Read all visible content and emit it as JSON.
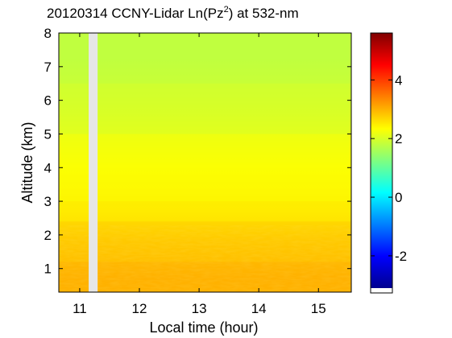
{
  "chart_data": {
    "type": "heatmap",
    "title_main": "20120314 CCNY-Lidar Ln(Pz",
    "title_sup": "2",
    "title_tail": ") at 532-nm",
    "xlabel": "Local time (hour)",
    "ylabel": "Altitude (km)",
    "xlim": [
      10.65,
      15.55
    ],
    "ylim": [
      0.3,
      8.0
    ],
    "xticks": [
      11,
      12,
      13,
      14,
      15
    ],
    "yticks": [
      1,
      2,
      3,
      4,
      5,
      6,
      7,
      8
    ],
    "data_gap": {
      "x_start": 11.15,
      "x_end": 11.3
    },
    "colorbar": {
      "colormap": "jet",
      "range": [
        -3.1,
        5.6
      ],
      "ticks": [
        -2,
        0,
        2,
        4
      ]
    },
    "regions": [
      {
        "altitude": [
          0.3,
          1.2
        ],
        "value": 3.0
      },
      {
        "altitude": [
          1.2,
          2.4
        ],
        "value": 2.8
      },
      {
        "altitude": [
          2.4,
          3.0
        ],
        "value": 2.5
      },
      {
        "altitude": [
          3.0,
          5.0
        ],
        "value": 2.3
      },
      {
        "altitude": [
          5.0,
          6.5
        ],
        "value": 2.0
      },
      {
        "altitude": [
          6.5,
          8.0
        ],
        "value": 1.8
      }
    ]
  }
}
